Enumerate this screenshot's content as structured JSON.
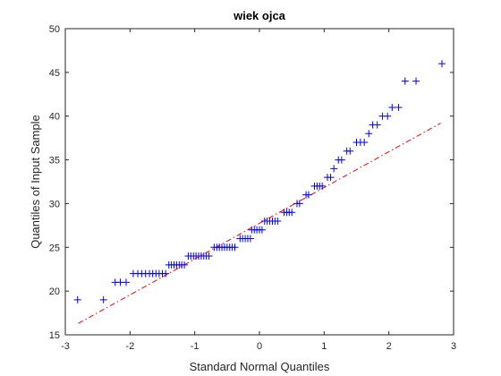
{
  "chart_data": {
    "type": "scatter",
    "title": "wiek ojca",
    "xlabel": "Standard Normal Quantiles",
    "ylabel": "Quantiles of Input Sample",
    "xlim": [
      -3,
      3
    ],
    "ylim": [
      15,
      50
    ],
    "xticks": [
      "-3",
      "-2",
      "-1",
      "0",
      "1",
      "2",
      "3"
    ],
    "yticks": [
      "15",
      "20",
      "25",
      "30",
      "35",
      "40",
      "45",
      "50"
    ],
    "grid": false,
    "marker": "+",
    "colors": {
      "points": "#0000ff",
      "reference_line": "#ff0000",
      "axes": "#262626"
    },
    "reference_line": {
      "style": "dash-dot",
      "x": [
        -2.8,
        2.8
      ],
      "y": [
        16.3,
        39.2
      ]
    },
    "points": [
      {
        "x": -2.81,
        "y": 19
      },
      {
        "x": -2.41,
        "y": 19
      },
      {
        "x": -2.23,
        "y": 21
      },
      {
        "x": -2.15,
        "y": 21
      },
      {
        "x": -2.06,
        "y": 21
      },
      {
        "x": -1.95,
        "y": 22
      },
      {
        "x": -1.88,
        "y": 22
      },
      {
        "x": -1.82,
        "y": 22
      },
      {
        "x": -1.76,
        "y": 22
      },
      {
        "x": -1.7,
        "y": 22
      },
      {
        "x": -1.65,
        "y": 22
      },
      {
        "x": -1.6,
        "y": 22
      },
      {
        "x": -1.55,
        "y": 22
      },
      {
        "x": -1.5,
        "y": 22
      },
      {
        "x": -1.45,
        "y": 22
      },
      {
        "x": -1.4,
        "y": 23
      },
      {
        "x": -1.36,
        "y": 23
      },
      {
        "x": -1.32,
        "y": 23
      },
      {
        "x": -1.28,
        "y": 23
      },
      {
        "x": -1.24,
        "y": 23
      },
      {
        "x": -1.2,
        "y": 23
      },
      {
        "x": -1.16,
        "y": 23
      },
      {
        "x": -1.1,
        "y": 24
      },
      {
        "x": -1.06,
        "y": 24
      },
      {
        "x": -1.02,
        "y": 24
      },
      {
        "x": -0.98,
        "y": 24
      },
      {
        "x": -0.94,
        "y": 24
      },
      {
        "x": -0.9,
        "y": 24
      },
      {
        "x": -0.86,
        "y": 24
      },
      {
        "x": -0.82,
        "y": 24
      },
      {
        "x": -0.78,
        "y": 24
      },
      {
        "x": -0.7,
        "y": 25
      },
      {
        "x": -0.66,
        "y": 25
      },
      {
        "x": -0.62,
        "y": 25
      },
      {
        "x": -0.58,
        "y": 25
      },
      {
        "x": -0.54,
        "y": 25
      },
      {
        "x": -0.5,
        "y": 25
      },
      {
        "x": -0.46,
        "y": 25
      },
      {
        "x": -0.42,
        "y": 25
      },
      {
        "x": -0.38,
        "y": 25
      },
      {
        "x": -0.3,
        "y": 26
      },
      {
        "x": -0.26,
        "y": 26
      },
      {
        "x": -0.22,
        "y": 26
      },
      {
        "x": -0.18,
        "y": 26
      },
      {
        "x": -0.14,
        "y": 26
      },
      {
        "x": -0.12,
        "y": 27
      },
      {
        "x": -0.08,
        "y": 27
      },
      {
        "x": -0.04,
        "y": 27
      },
      {
        "x": 0.0,
        "y": 27
      },
      {
        "x": 0.04,
        "y": 27
      },
      {
        "x": 0.08,
        "y": 28
      },
      {
        "x": 0.12,
        "y": 28
      },
      {
        "x": 0.16,
        "y": 28
      },
      {
        "x": 0.2,
        "y": 28
      },
      {
        "x": 0.24,
        "y": 28
      },
      {
        "x": 0.28,
        "y": 28
      },
      {
        "x": 0.38,
        "y": 29
      },
      {
        "x": 0.42,
        "y": 29
      },
      {
        "x": 0.46,
        "y": 29
      },
      {
        "x": 0.5,
        "y": 29
      },
      {
        "x": 0.58,
        "y": 30
      },
      {
        "x": 0.62,
        "y": 30
      },
      {
        "x": 0.72,
        "y": 31
      },
      {
        "x": 0.76,
        "y": 31
      },
      {
        "x": 0.85,
        "y": 32
      },
      {
        "x": 0.89,
        "y": 32
      },
      {
        "x": 0.93,
        "y": 32
      },
      {
        "x": 0.97,
        "y": 32
      },
      {
        "x": 1.05,
        "y": 33
      },
      {
        "x": 1.1,
        "y": 33
      },
      {
        "x": 1.15,
        "y": 34
      },
      {
        "x": 1.22,
        "y": 35
      },
      {
        "x": 1.27,
        "y": 35
      },
      {
        "x": 1.35,
        "y": 36
      },
      {
        "x": 1.4,
        "y": 36
      },
      {
        "x": 1.5,
        "y": 37
      },
      {
        "x": 1.56,
        "y": 37
      },
      {
        "x": 1.62,
        "y": 37
      },
      {
        "x": 1.69,
        "y": 38
      },
      {
        "x": 1.75,
        "y": 39
      },
      {
        "x": 1.82,
        "y": 39
      },
      {
        "x": 1.9,
        "y": 40
      },
      {
        "x": 1.98,
        "y": 40
      },
      {
        "x": 2.05,
        "y": 41
      },
      {
        "x": 2.15,
        "y": 41
      },
      {
        "x": 2.25,
        "y": 44
      },
      {
        "x": 2.42,
        "y": 44
      },
      {
        "x": 2.82,
        "y": 46
      }
    ]
  }
}
